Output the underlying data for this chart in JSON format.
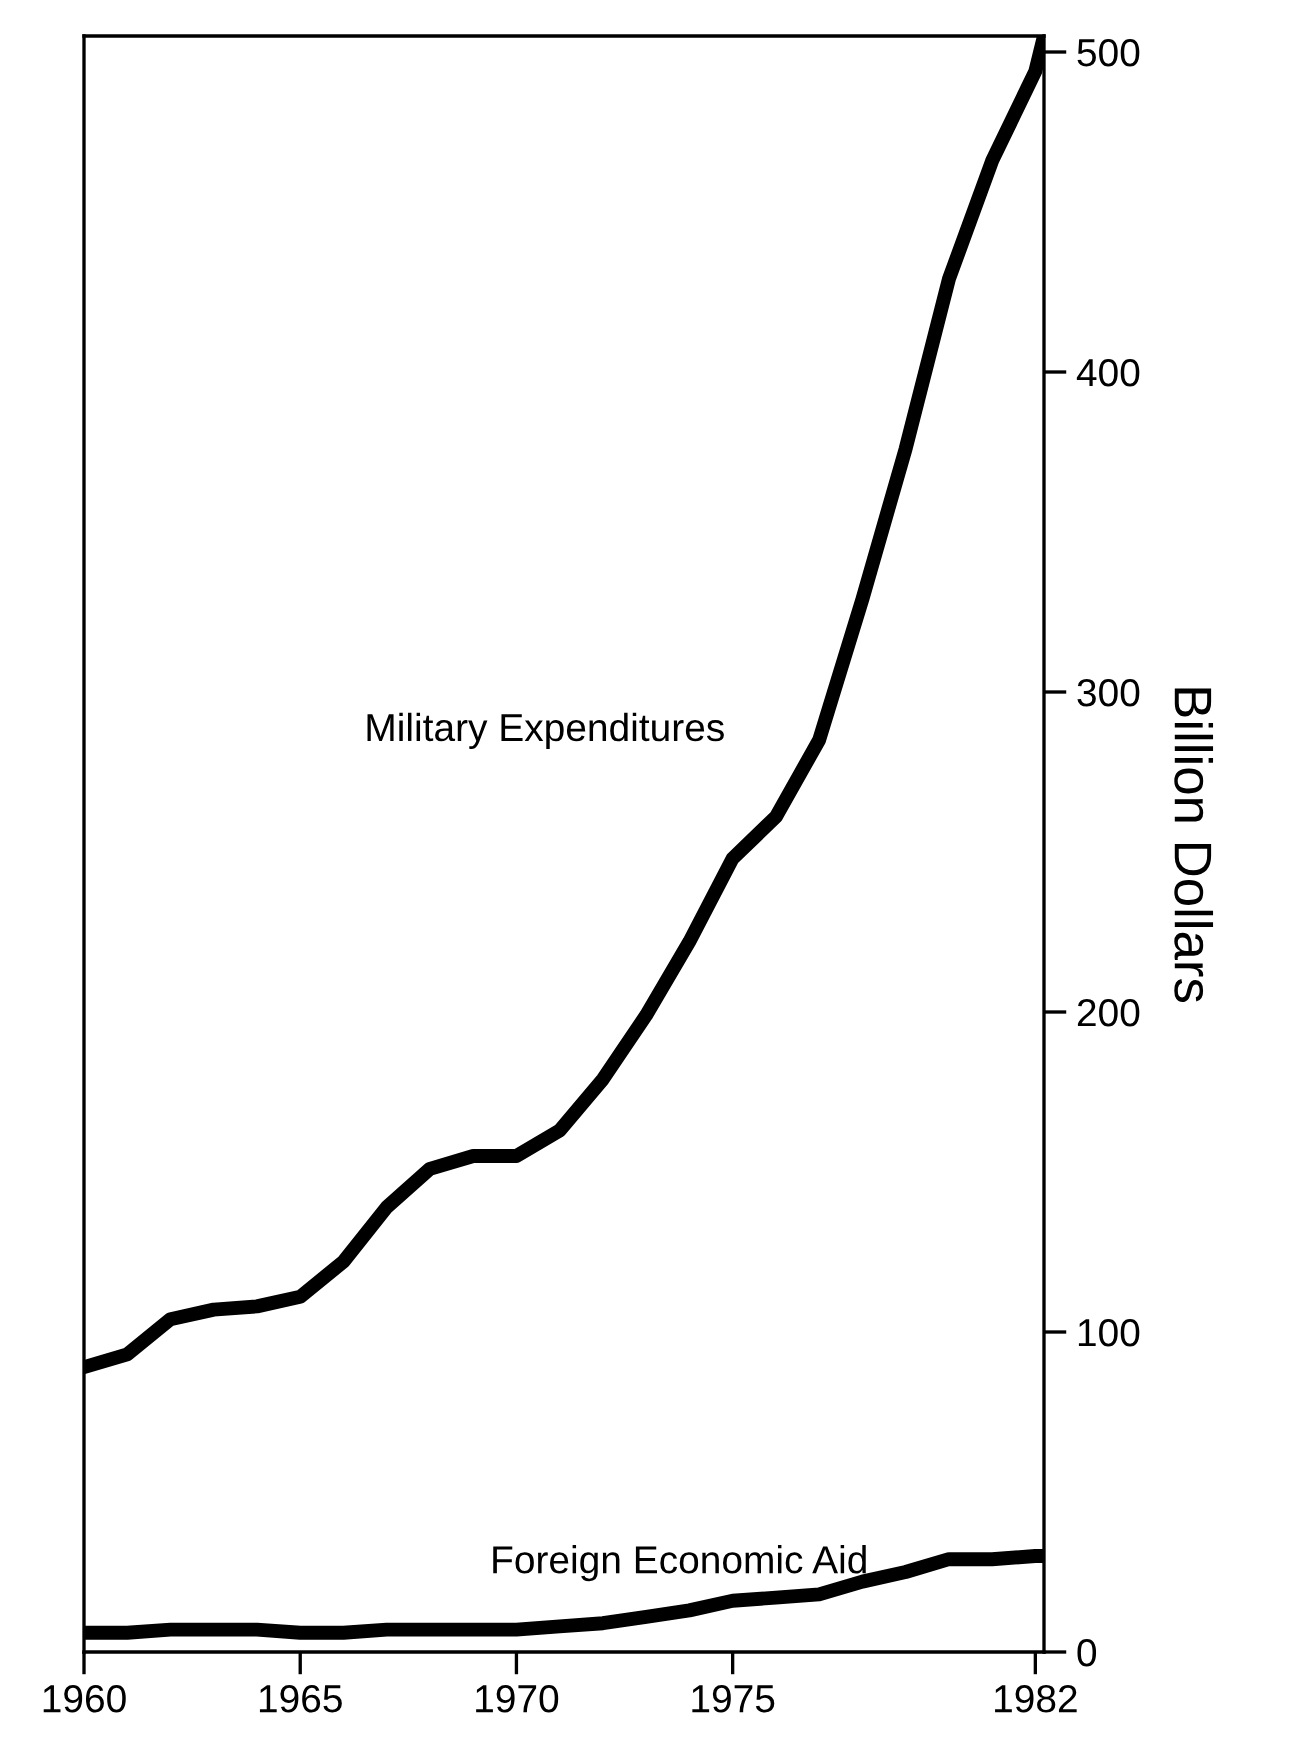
{
  "chart_data": {
    "type": "line",
    "ylabel": "Billion Dollars",
    "x": [
      1960,
      1961,
      1962,
      1963,
      1964,
      1965,
      1966,
      1967,
      1968,
      1969,
      1970,
      1971,
      1972,
      1973,
      1974,
      1975,
      1976,
      1977,
      1978,
      1979,
      1980,
      1981,
      1982,
      1982.2
    ],
    "series": [
      {
        "name": "Military Expenditures",
        "color": "#000000",
        "values": [
          89,
          93,
          104,
          107,
          108,
          111,
          122,
          139,
          151,
          155,
          155,
          163,
          179,
          199,
          222,
          248,
          261,
          285,
          329,
          376,
          429,
          466,
          494,
          505
        ]
      },
      {
        "name": "Foreign Economic Aid",
        "color": "#000000",
        "values": [
          6,
          6,
          7,
          7,
          7,
          6,
          6,
          7,
          7,
          7,
          7,
          8,
          9,
          11,
          13,
          16,
          17,
          18,
          22,
          25,
          29,
          29,
          30,
          30
        ]
      }
    ],
    "xlim": [
      1960,
      1982.2
    ],
    "ylim": [
      0,
      505
    ],
    "xticks": [
      1960,
      1965,
      1970,
      1975,
      1982
    ],
    "yticks": [
      0,
      100,
      200,
      300,
      400,
      500
    ],
    "grid": false,
    "legend": false,
    "marker": "none",
    "line_style": "solid"
  }
}
